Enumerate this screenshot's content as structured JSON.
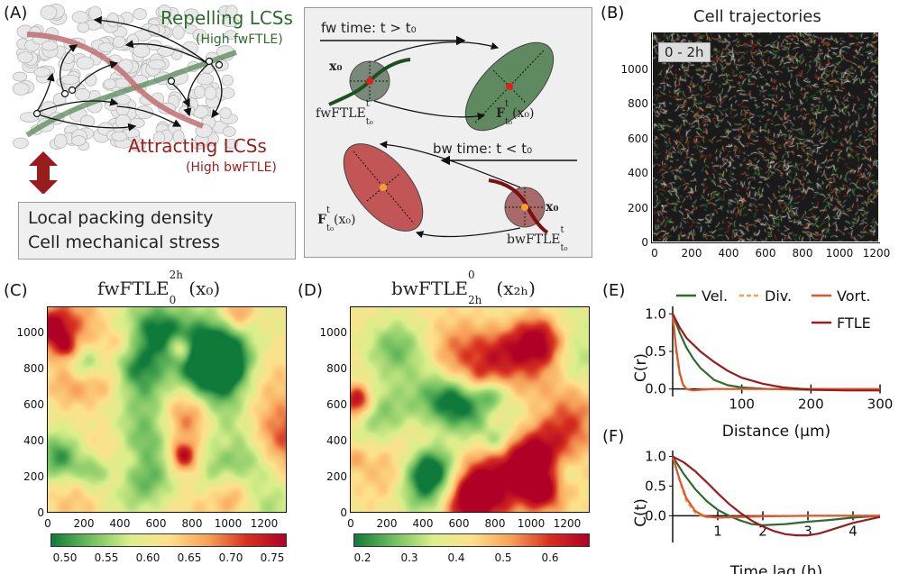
{
  "panels": {
    "A": "(A)",
    "B": "(B)",
    "C": "(C)",
    "D": "(D)",
    "E": "(E)",
    "F": "(F)"
  },
  "panelA": {
    "repelling_title": "Repelling LCSs",
    "repelling_sub": "(High fwFTLE)",
    "attracting_title": "Attracting LCSs",
    "attracting_sub": "(High bwFTLE)",
    "box_line1": "Local packing density",
    "box_line2": "Cell mechanical stress",
    "fw_time": "fw time: t > t₀",
    "bw_time": "bw time: t < t₀",
    "x0": "x₀",
    "fwftle": "fwFTLE",
    "bwftle": "bwFTLE",
    "sub_t0": "t₀",
    "sup_t": "t",
    "F": "F",
    "F_arg": "(x₀)",
    "colors": {
      "repel": "#2e6b2e",
      "attract": "#9b1c1c",
      "arrow_red": "#a01515"
    }
  },
  "panelB": {
    "title": "Cell trajectories",
    "time_badge": "0 - 2h",
    "y_ticks": [
      "1000",
      "800",
      "600",
      "400",
      "200",
      "0"
    ],
    "x_ticks": [
      "0",
      "200",
      "400",
      "600",
      "800",
      "1000",
      "1200"
    ]
  },
  "panelC": {
    "title_main": "fwFTLE",
    "title_sup": "2h",
    "title_sub": "0",
    "title_arg": "(x₀)",
    "y_ticks": [
      "1000",
      "800",
      "600",
      "400",
      "200",
      "0"
    ],
    "x_ticks": [
      "0",
      "200",
      "400",
      "600",
      "800",
      "1000",
      "1200"
    ],
    "colorbar_ticks": [
      "0.50",
      "0.55",
      "0.60",
      "0.65",
      "0.70",
      "0.75"
    ]
  },
  "panelD": {
    "title_main": "bwFTLE",
    "title_sup": "0",
    "title_sub": "2h",
    "title_arg": "(x₂ₕ)",
    "y_ticks": [
      "1000",
      "800",
      "600",
      "400",
      "200",
      "0"
    ],
    "x_ticks": [
      "0",
      "200",
      "400",
      "600",
      "800",
      "1000",
      "1200"
    ],
    "colorbar_ticks": [
      "0.2",
      "0.3",
      "0.4",
      "0.5",
      "0.6"
    ]
  },
  "chart_data": [
    {
      "type": "line",
      "panel": "E",
      "xlabel": "Distance (μm)",
      "ylabel": "C(r)",
      "xlim": [
        0,
        300
      ],
      "ylim": [
        -0.1,
        1.1
      ],
      "x_ticks": [
        "100",
        "200",
        "300"
      ],
      "y_ticks": [
        "1.0",
        "0.5",
        "0.0"
      ],
      "legend": [
        "Vel.",
        "Div.",
        "Vort.",
        "FTLE"
      ],
      "legend_placement": "top",
      "series": [
        {
          "name": "Vel.",
          "color": "#2e6b2e",
          "dash": "solid",
          "x": [
            0,
            10,
            20,
            30,
            40,
            60,
            80,
            100,
            140,
            200,
            300
          ],
          "y": [
            1.0,
            0.75,
            0.55,
            0.4,
            0.28,
            0.12,
            0.05,
            0.02,
            0.0,
            -0.01,
            -0.01
          ]
        },
        {
          "name": "Div.",
          "color": "#f2a64a",
          "dash": "dashed",
          "x": [
            0,
            5,
            10,
            15,
            20,
            30,
            40,
            60,
            300
          ],
          "y": [
            1.0,
            0.5,
            0.2,
            0.05,
            0.0,
            -0.02,
            -0.01,
            0.0,
            0.0
          ]
        },
        {
          "name": "Vort.",
          "color": "#e0552b",
          "dash": "solid",
          "x": [
            0,
            5,
            10,
            15,
            20,
            30,
            40,
            60,
            300
          ],
          "y": [
            1.0,
            0.55,
            0.22,
            0.06,
            0.0,
            -0.02,
            -0.01,
            0.0,
            0.0
          ]
        },
        {
          "name": "FTLE",
          "color": "#9b1c1c",
          "dash": "solid",
          "x": [
            0,
            10,
            20,
            40,
            60,
            80,
            100,
            130,
            160,
            200,
            250,
            300
          ],
          "y": [
            1.0,
            0.82,
            0.68,
            0.5,
            0.36,
            0.24,
            0.15,
            0.07,
            0.02,
            -0.01,
            -0.02,
            -0.02
          ]
        }
      ]
    },
    {
      "type": "line",
      "panel": "F",
      "xlabel": "Time lag (h)",
      "ylabel": "C(t)",
      "xlim": [
        0,
        4.6
      ],
      "ylim": [
        -0.45,
        1.1
      ],
      "x_ticks": [
        "1",
        "2",
        "3",
        "4"
      ],
      "y_ticks": [
        "1.0",
        "0.5",
        "0.0"
      ],
      "series": [
        {
          "name": "Vel.",
          "color": "#2e6b2e",
          "dash": "solid",
          "x": [
            0,
            0.25,
            0.5,
            0.75,
            1.0,
            1.25,
            1.5,
            1.75,
            2.0,
            2.5,
            3.0,
            3.5,
            4.0,
            4.6
          ],
          "y": [
            1.0,
            0.7,
            0.45,
            0.25,
            0.1,
            0.0,
            -0.08,
            -0.14,
            -0.16,
            -0.14,
            -0.1,
            -0.07,
            -0.03,
            0.0
          ]
        },
        {
          "name": "Div.",
          "color": "#f2a64a",
          "dash": "dashed",
          "x": [
            0,
            0.15,
            0.3,
            0.5,
            0.7,
            1.0,
            1.5,
            2.0,
            3.0,
            4.6
          ],
          "y": [
            1.0,
            0.6,
            0.25,
            0.05,
            -0.02,
            -0.03,
            -0.02,
            -0.01,
            0.0,
            0.0
          ]
        },
        {
          "name": "Vort.",
          "color": "#e0552b",
          "dash": "solid",
          "x": [
            0,
            0.15,
            0.3,
            0.5,
            0.7,
            1.0,
            1.5,
            2.0,
            3.0,
            4.6
          ],
          "y": [
            1.0,
            0.62,
            0.3,
            0.08,
            -0.01,
            -0.03,
            -0.02,
            -0.01,
            0.0,
            0.0
          ]
        },
        {
          "name": "FTLE",
          "color": "#9b1c1c",
          "dash": "solid",
          "x": [
            0,
            0.25,
            0.5,
            0.75,
            1.0,
            1.25,
            1.5,
            1.75,
            2.0,
            2.25,
            2.5,
            2.75,
            3.0,
            3.25,
            3.5,
            4.0,
            4.6
          ],
          "y": [
            1.0,
            0.9,
            0.75,
            0.57,
            0.38,
            0.2,
            0.05,
            -0.08,
            -0.18,
            -0.26,
            -0.31,
            -0.33,
            -0.33,
            -0.3,
            -0.24,
            -0.12,
            -0.02
          ]
        }
      ]
    }
  ]
}
